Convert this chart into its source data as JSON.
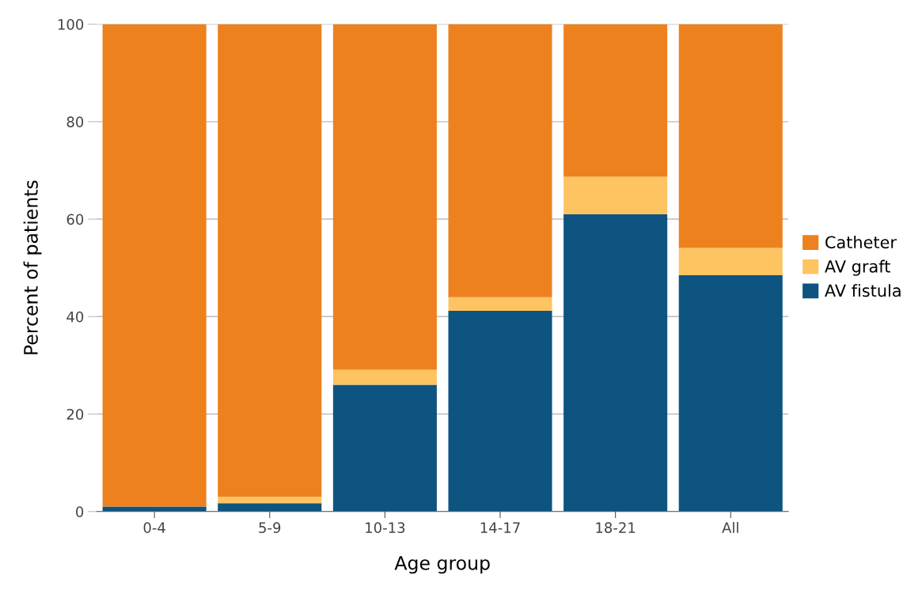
{
  "chart_data": {
    "type": "bar",
    "stacked": true,
    "xlabel": "Age group",
    "ylabel": "Percent of patients",
    "categories": [
      "0-4",
      "5-9",
      "10-13",
      "14-17",
      "18-21",
      "All"
    ],
    "series": [
      {
        "name": "AV fistula",
        "color": "#0e5481",
        "values": [
          1.0,
          1.7,
          26.0,
          41.2,
          61.0,
          48.5
        ]
      },
      {
        "name": "AV graft",
        "color": "#fec462",
        "values": [
          0,
          1.3,
          3.1,
          2.8,
          7.7,
          5.6
        ]
      },
      {
        "name": "Catheter",
        "color": "#ed811e",
        "values": [
          99.0,
          97.0,
          70.9,
          56.0,
          31.3,
          45.9
        ]
      }
    ],
    "ylim": [
      0,
      100
    ],
    "yticks": [
      0,
      20,
      40,
      60,
      80,
      100
    ],
    "grid": "y",
    "legend": "right"
  }
}
